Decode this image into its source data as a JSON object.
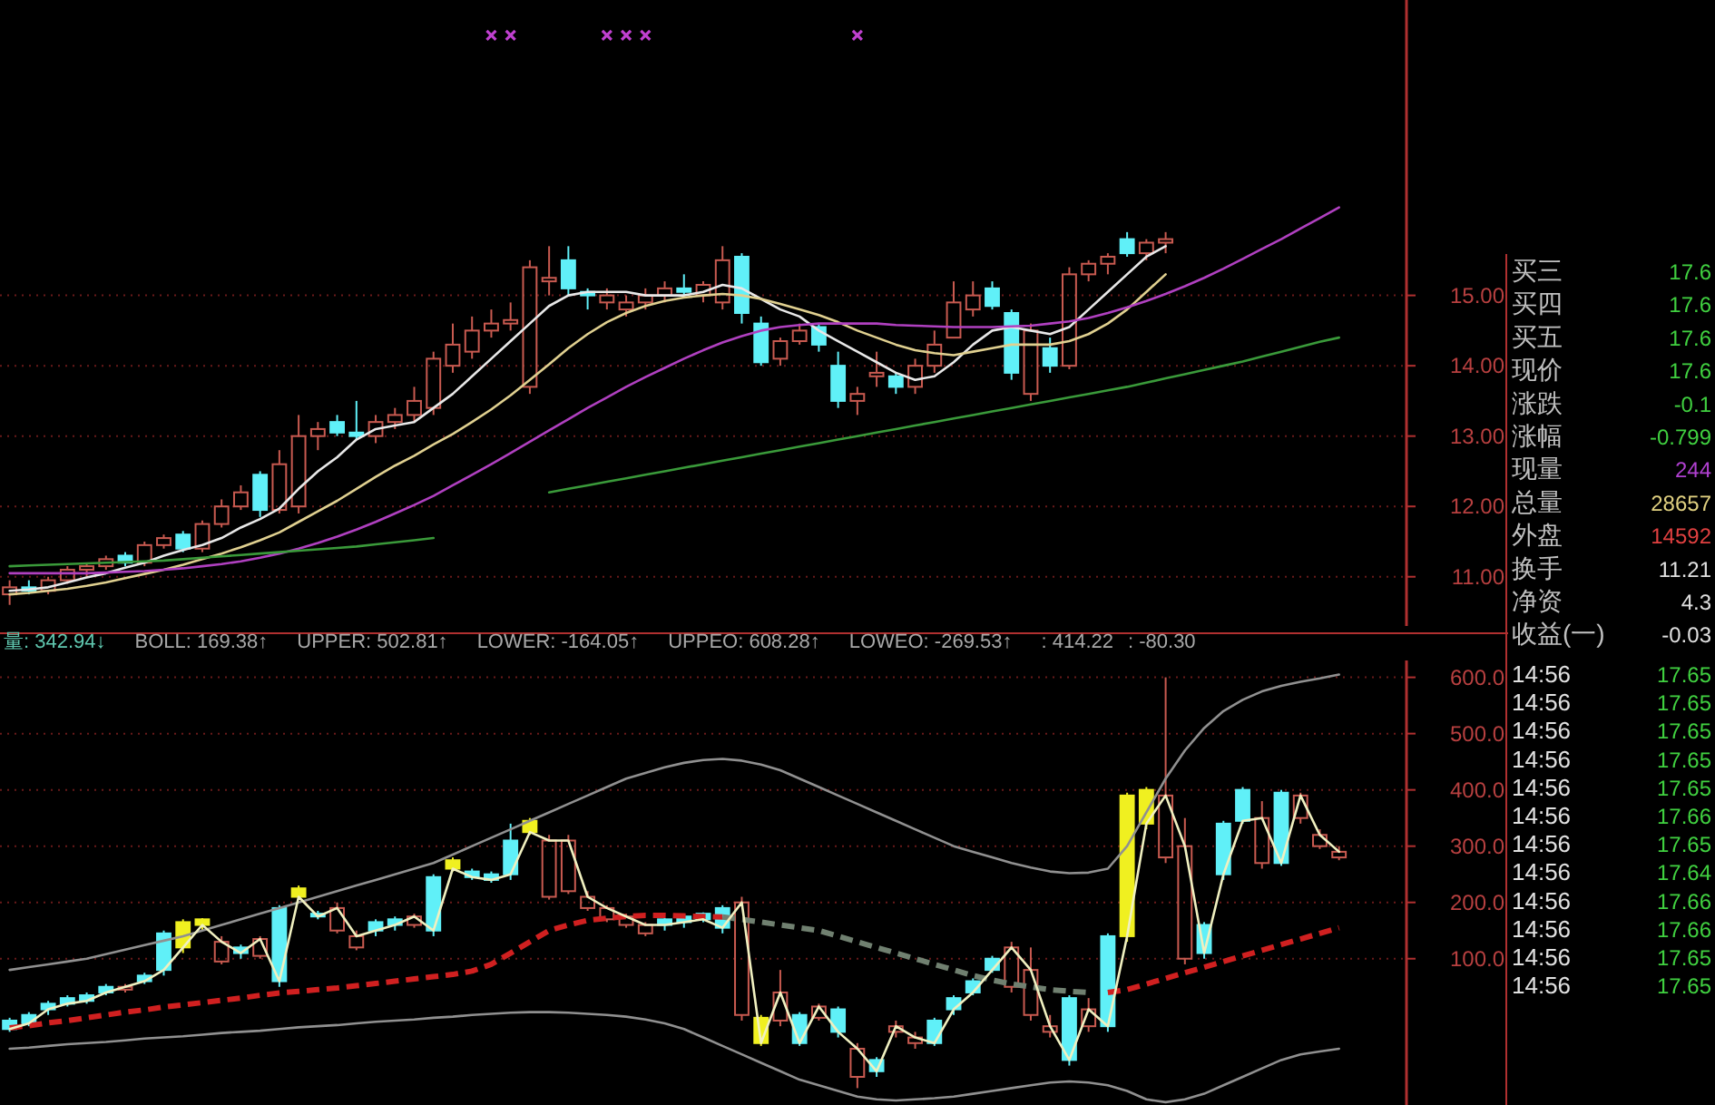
{
  "chart_data": [
    {
      "type": "candlestick",
      "categories": [
        null,
        null,
        null,
        null,
        null,
        null,
        null,
        null,
        null,
        null,
        null,
        null,
        null,
        null,
        null,
        null,
        null,
        null,
        null,
        null,
        null,
        null,
        null,
        null,
        null,
        null,
        null,
        null,
        null,
        null,
        null,
        null,
        null,
        null,
        null,
        null,
        null,
        null,
        null,
        null,
        null,
        null,
        null,
        null,
        null,
        null,
        null,
        null,
        null,
        null,
        null,
        null,
        null,
        null,
        null,
        null,
        null,
        null,
        null,
        null,
        null,
        null,
        null,
        null,
        null,
        null,
        null,
        null,
        null,
        null,
        null,
        null,
        null
      ],
      "ohlc": [
        [
          10.75,
          10.95,
          10.6,
          10.85
        ],
        [
          10.85,
          10.95,
          10.75,
          10.8
        ],
        [
          10.8,
          11.0,
          10.75,
          10.95
        ],
        [
          10.95,
          11.15,
          10.9,
          11.1
        ],
        [
          11.1,
          11.2,
          11.0,
          11.15
        ],
        [
          11.15,
          11.3,
          11.1,
          11.25
        ],
        [
          11.3,
          11.35,
          11.15,
          11.2
        ],
        [
          11.2,
          11.5,
          11.15,
          11.45
        ],
        [
          11.45,
          11.6,
          11.4,
          11.55
        ],
        [
          11.6,
          11.65,
          11.35,
          11.4
        ],
        [
          11.4,
          11.8,
          11.35,
          11.75
        ],
        [
          11.75,
          12.1,
          11.7,
          12.0
        ],
        [
          12.0,
          12.3,
          11.95,
          12.2
        ],
        [
          12.45,
          12.5,
          11.85,
          11.95
        ],
        [
          11.95,
          12.8,
          11.9,
          12.6
        ],
        [
          12.0,
          13.3,
          11.9,
          13.0
        ],
        [
          13.0,
          13.2,
          12.8,
          13.1
        ],
        [
          13.2,
          13.3,
          13.0,
          13.05
        ],
        [
          13.05,
          13.5,
          12.95,
          13.0
        ],
        [
          13.0,
          13.3,
          12.9,
          13.2
        ],
        [
          13.2,
          13.4,
          13.1,
          13.3
        ],
        [
          13.3,
          13.7,
          13.2,
          13.5
        ],
        [
          13.4,
          14.2,
          13.3,
          14.1
        ],
        [
          14.0,
          14.6,
          13.9,
          14.3
        ],
        [
          14.2,
          14.7,
          14.1,
          14.5
        ],
        [
          14.5,
          14.8,
          14.4,
          14.6
        ],
        [
          14.6,
          14.9,
          14.5,
          14.65
        ],
        [
          13.7,
          15.5,
          13.6,
          15.4
        ],
        [
          15.2,
          15.7,
          15.0,
          15.25
        ],
        [
          15.5,
          15.7,
          15.0,
          15.1
        ],
        [
          15.05,
          15.1,
          14.8,
          15.0
        ],
        [
          14.9,
          15.1,
          14.8,
          15.0
        ],
        [
          14.8,
          15.0,
          14.7,
          14.9
        ],
        [
          14.9,
          15.1,
          14.8,
          15.0
        ],
        [
          15.0,
          15.2,
          14.9,
          15.1
        ],
        [
          15.1,
          15.3,
          15.0,
          15.05
        ],
        [
          15.0,
          15.2,
          14.9,
          15.15
        ],
        [
          14.9,
          15.7,
          14.8,
          15.5
        ],
        [
          15.55,
          15.6,
          14.6,
          14.75
        ],
        [
          14.6,
          14.7,
          14.0,
          14.05
        ],
        [
          14.1,
          14.4,
          14.0,
          14.35
        ],
        [
          14.35,
          14.6,
          14.3,
          14.5
        ],
        [
          14.55,
          14.6,
          14.2,
          14.3
        ],
        [
          14.0,
          14.2,
          13.4,
          13.5
        ],
        [
          13.5,
          13.7,
          13.3,
          13.6
        ],
        [
          13.85,
          14.2,
          13.7,
          13.9
        ],
        [
          13.85,
          13.9,
          13.6,
          13.7
        ],
        [
          13.7,
          14.1,
          13.6,
          14.0
        ],
        [
          14.0,
          14.5,
          13.9,
          14.3
        ],
        [
          14.4,
          15.2,
          14.4,
          14.9
        ],
        [
          14.8,
          15.2,
          14.7,
          15.0
        ],
        [
          15.1,
          15.2,
          14.8,
          14.85
        ],
        [
          14.75,
          14.8,
          13.8,
          13.9
        ],
        [
          13.6,
          14.6,
          13.5,
          14.5
        ],
        [
          14.25,
          14.4,
          13.9,
          14.0
        ],
        [
          14.0,
          15.4,
          13.95,
          15.3
        ],
        [
          15.3,
          15.5,
          15.2,
          15.45
        ],
        [
          15.45,
          15.6,
          15.3,
          15.55
        ],
        [
          15.8,
          15.9,
          15.55,
          15.6
        ],
        [
          15.6,
          15.8,
          15.5,
          15.75
        ],
        [
          15.75,
          15.9,
          15.6,
          15.8
        ],
        null,
        null,
        null,
        null,
        null,
        null,
        null,
        null,
        null,
        null,
        null,
        null
      ],
      "colors": [
        "#c85a50",
        "#60f0f8",
        "#c85a50",
        "#c85a50",
        "#c85a50",
        "#c85a50",
        "#60f0f8",
        "#c85a50",
        "#c85a50",
        "#60f0f8",
        "#c85a50",
        "#c85a50",
        "#c85a50",
        "#60f0f8",
        "#c85a50",
        "#c85a50",
        "#c85a50",
        "#60f0f8",
        "#60f0f8",
        "#c85a50",
        "#c85a50",
        "#c85a50",
        "#c85a50",
        "#c85a50",
        "#c85a50",
        "#c85a50",
        "#c85a50",
        "#c85a50",
        "#c85a50",
        "#60f0f8",
        "#60f0f8",
        "#c85a50",
        "#c85a50",
        "#c85a50",
        "#c85a50",
        "#60f0f8",
        "#c85a50",
        "#c85a50",
        "#60f0f8",
        "#60f0f8",
        "#c85a50",
        "#c85a50",
        "#60f0f8",
        "#60f0f8",
        "#c85a50",
        "#c85a50",
        "#60f0f8",
        "#c85a50",
        "#c85a50",
        "#c85a50",
        "#c85a50",
        "#60f0f8",
        "#60f0f8",
        "#c85a50",
        "#60f0f8",
        "#c85a50",
        "#c85a50",
        "#c85a50",
        "#60f0f8",
        "#c85a50",
        "#c85a50",
        null,
        null,
        null,
        null,
        null,
        null,
        null,
        null,
        null,
        null,
        null,
        null
      ],
      "series": [
        {
          "type": "line",
          "color": "#e8e8e8",
          "values": [
            10.8,
            10.82,
            10.85,
            10.92,
            10.99,
            11.05,
            11.13,
            11.2,
            11.3,
            11.38,
            11.45,
            11.55,
            11.7,
            11.82,
            11.97,
            12.25,
            12.5,
            12.7,
            12.95,
            13.1,
            13.15,
            13.2,
            13.4,
            13.6,
            13.85,
            14.1,
            14.35,
            14.6,
            14.85,
            15.0,
            15.05,
            15.05,
            15.05,
            15.0,
            15.0,
            15.0,
            15.05,
            15.15,
            15.1,
            14.95,
            14.8,
            14.7,
            14.5,
            14.35,
            14.2,
            14.05,
            13.9,
            13.8,
            13.85,
            14.05,
            14.3,
            14.5,
            14.55,
            14.5,
            14.45,
            14.55,
            14.8,
            15.05,
            15.3,
            15.55,
            15.7,
            null,
            null,
            null,
            null,
            null,
            null,
            null,
            null,
            null,
            null,
            null,
            null
          ]
        },
        {
          "type": "line",
          "color": "#e0d090",
          "values": [
            10.75,
            10.77,
            10.8,
            10.83,
            10.87,
            10.92,
            10.98,
            11.04,
            11.1,
            11.17,
            11.25,
            11.33,
            11.42,
            11.52,
            11.63,
            11.78,
            11.93,
            12.08,
            12.25,
            12.42,
            12.58,
            12.72,
            12.88,
            13.03,
            13.2,
            13.38,
            13.58,
            13.8,
            14.02,
            14.25,
            14.45,
            14.62,
            14.75,
            14.85,
            14.92,
            14.97,
            15.0,
            15.02,
            15.0,
            14.95,
            14.88,
            14.8,
            14.72,
            14.62,
            14.5,
            14.4,
            14.3,
            14.22,
            14.18,
            14.15,
            14.2,
            14.25,
            14.3,
            14.3,
            14.3,
            14.35,
            14.45,
            14.6,
            14.8,
            15.05,
            15.3,
            null,
            null,
            null,
            null,
            null,
            null,
            null,
            null,
            null,
            null,
            null,
            null
          ]
        },
        {
          "type": "line",
          "color": "#b040c0",
          "values": [
            11.05,
            11.05,
            11.05,
            11.05,
            11.05,
            11.06,
            11.07,
            11.08,
            11.1,
            11.12,
            11.15,
            11.18,
            11.22,
            11.27,
            11.33,
            11.4,
            11.48,
            11.57,
            11.67,
            11.78,
            11.9,
            12.02,
            12.15,
            12.3,
            12.45,
            12.6,
            12.76,
            12.92,
            13.08,
            13.24,
            13.4,
            13.55,
            13.7,
            13.84,
            13.97,
            14.1,
            14.22,
            14.33,
            14.42,
            14.5,
            14.55,
            14.58,
            14.6,
            14.6,
            14.6,
            14.6,
            14.58,
            14.57,
            14.56,
            14.55,
            14.55,
            14.55,
            14.56,
            14.57,
            14.6,
            14.63,
            14.68,
            14.75,
            14.83,
            14.92,
            15.02,
            15.13,
            15.25,
            15.38,
            15.52,
            15.66,
            15.8,
            15.95,
            16.1,
            16.25,
            null,
            null,
            null
          ]
        },
        {
          "type": "line",
          "color": "#3a9a3a",
          "values": [
            11.15,
            11.16,
            11.17,
            11.18,
            11.19,
            11.2,
            11.21,
            11.22,
            11.23,
            11.25,
            11.27,
            11.29,
            11.31,
            11.33,
            11.35,
            11.37,
            11.39,
            11.41,
            11.43,
            11.46,
            11.49,
            11.52,
            11.55,
            null,
            null,
            null,
            null,
            null,
            12.2,
            12.25,
            12.3,
            12.35,
            12.4,
            12.45,
            12.5,
            12.55,
            12.6,
            12.65,
            12.7,
            12.75,
            12.8,
            12.85,
            12.9,
            12.95,
            13.0,
            13.05,
            13.1,
            13.15,
            13.2,
            13.25,
            13.3,
            13.35,
            13.4,
            13.45,
            13.5,
            13.55,
            13.6,
            13.65,
            13.7,
            13.76,
            13.82,
            13.88,
            13.94,
            14.0,
            14.06,
            14.13,
            14.2,
            14.27,
            14.34,
            14.4,
            null,
            null,
            null
          ]
        },
        {
          "type": "scatter",
          "marker": "cross",
          "color": "#c040d0",
          "values": [
            null,
            null,
            null,
            null,
            null,
            null,
            null,
            null,
            null,
            null,
            null,
            null,
            null,
            null,
            null,
            null,
            null,
            null,
            null,
            null,
            null,
            null,
            null,
            null,
            null,
            18.7,
            18.7,
            null,
            null,
            null,
            null,
            18.7,
            18.7,
            18.7,
            null,
            null,
            null,
            null,
            null,
            null,
            null,
            null,
            null,
            null,
            18.7,
            null,
            null,
            null,
            null,
            null,
            null,
            null,
            null,
            null,
            null,
            null,
            null,
            null,
            null,
            null,
            null,
            null,
            null,
            null,
            null,
            null,
            null,
            null,
            null,
            null,
            null,
            null,
            null
          ]
        }
      ],
      "ylim": [
        10.3,
        19.2
      ],
      "yticks": [
        {
          "value": 11,
          "label": "11.00"
        },
        {
          "value": 12,
          "label": "12.00"
        },
        {
          "value": 13,
          "label": "13.00"
        },
        {
          "value": 14,
          "label": "14.00"
        },
        {
          "value": 15,
          "label": "15.00"
        }
      ],
      "grid": "y"
    },
    {
      "type": "candlestick",
      "categories": [
        null,
        null,
        null,
        null,
        null,
        null,
        null,
        null,
        null,
        null,
        null,
        null,
        null,
        null,
        null,
        null,
        null,
        null,
        null,
        null,
        null,
        null,
        null,
        null,
        null,
        null,
        null,
        null,
        null,
        null,
        null,
        null,
        null,
        null,
        null,
        null,
        null,
        null,
        null,
        null,
        null,
        null,
        null,
        null,
        null,
        null,
        null,
        null,
        null,
        null,
        null,
        null,
        null,
        null,
        null,
        null,
        null,
        null,
        null,
        null,
        null,
        null,
        null,
        null,
        null,
        null,
        null,
        null,
        null,
        null,
        null,
        null,
        null
      ],
      "ohlc": [
        [
          -10,
          -5,
          -30,
          -25
        ],
        [
          0,
          5,
          -20,
          -15
        ],
        [
          20,
          25,
          0,
          10
        ],
        [
          30,
          35,
          15,
          20
        ],
        [
          35,
          40,
          20,
          25
        ],
        [
          50,
          55,
          35,
          40
        ],
        [
          45,
          55,
          40,
          50
        ],
        [
          70,
          75,
          55,
          60
        ],
        [
          145,
          150,
          70,
          80
        ],
        [
          165,
          170,
          110,
          120
        ],
        [
          170,
          172,
          150,
          160
        ],
        [
          95,
          140,
          90,
          130
        ],
        [
          120,
          125,
          100,
          110
        ],
        [
          105,
          140,
          100,
          135
        ],
        [
          190,
          195,
          50,
          60
        ],
        [
          225,
          230,
          205,
          210
        ],
        [
          180,
          185,
          170,
          175
        ],
        [
          150,
          200,
          145,
          190
        ],
        [
          120,
          150,
          115,
          140
        ],
        [
          165,
          170,
          140,
          150
        ],
        [
          170,
          175,
          150,
          160
        ],
        [
          160,
          180,
          155,
          175
        ],
        [
          245,
          250,
          140,
          150
        ],
        [
          275,
          280,
          255,
          260
        ],
        [
          255,
          260,
          240,
          245
        ],
        [
          250,
          255,
          235,
          240
        ],
        [
          310,
          340,
          240,
          250
        ],
        [
          345,
          350,
          320,
          325
        ],
        [
          210,
          320,
          205,
          310
        ],
        [
          220,
          320,
          215,
          310
        ],
        [
          190,
          220,
          185,
          210
        ],
        [
          170,
          195,
          165,
          190
        ],
        [
          160,
          180,
          155,
          175
        ],
        [
          145,
          165,
          140,
          160
        ],
        [
          170,
          172,
          150,
          160
        ],
        [
          175,
          178,
          155,
          165
        ],
        [
          180,
          182,
          165,
          170
        ],
        [
          190,
          195,
          145,
          155
        ],
        [
          0,
          210,
          -10,
          200
        ],
        [
          -5,
          0,
          -55,
          -50
        ],
        [
          -10,
          80,
          -20,
          40
        ],
        [
          0,
          5,
          -55,
          -50
        ],
        [
          -5,
          20,
          -10,
          15
        ],
        [
          10,
          15,
          -40,
          -30
        ],
        [
          -110,
          -50,
          -130,
          -60
        ],
        [
          -80,
          -75,
          -110,
          -100
        ],
        [
          -30,
          -10,
          -40,
          -20
        ],
        [
          -50,
          -30,
          -60,
          -40
        ],
        [
          -10,
          -5,
          -55,
          -50
        ],
        [
          30,
          35,
          0,
          10
        ],
        [
          60,
          65,
          35,
          40
        ],
        [
          100,
          105,
          75,
          80
        ],
        [
          50,
          130,
          40,
          120
        ],
        [
          0,
          120,
          -10,
          80
        ],
        [
          -30,
          0,
          -40,
          -20
        ],
        [
          30,
          35,
          -90,
          -80
        ],
        [
          -20,
          30,
          -30,
          10
        ],
        [
          140,
          145,
          -30,
          -20
        ],
        [
          390,
          395,
          130,
          140
        ],
        [
          400,
          405,
          330,
          340
        ],
        [
          280,
          600,
          270,
          390
        ],
        [
          100,
          350,
          90,
          300
        ],
        [
          160,
          165,
          100,
          110
        ],
        [
          340,
          345,
          240,
          250
        ],
        [
          400,
          405,
          340,
          345
        ],
        [
          270,
          380,
          260,
          350
        ],
        [
          395,
          400,
          265,
          270
        ],
        [
          350,
          395,
          340,
          390
        ],
        [
          300,
          330,
          295,
          320
        ],
        [
          280,
          300,
          275,
          290
        ],
        null,
        null,
        null
      ],
      "colors": [
        "#60f0f8",
        "#60f0f8",
        "#60f0f8",
        "#60f0f8",
        "#60f0f8",
        "#60f0f8",
        "#c85a50",
        "#60f0f8",
        "#60f0f8",
        "#f0f020",
        "#f0f020",
        "#c85a50",
        "#60f0f8",
        "#c85a50",
        "#60f0f8",
        "#f0f020",
        "#60f0f8",
        "#c85a50",
        "#c85a50",
        "#60f0f8",
        "#60f0f8",
        "#c85a50",
        "#60f0f8",
        "#f0f020",
        "#60f0f8",
        "#60f0f8",
        "#60f0f8",
        "#f0f020",
        "#c85a50",
        "#c85a50",
        "#c85a50",
        "#c85a50",
        "#c85a50",
        "#c85a50",
        "#60f0f8",
        "#60f0f8",
        "#60f0f8",
        "#60f0f8",
        "#c85a50",
        "#f0f020",
        "#c85a50",
        "#60f0f8",
        "#c85a50",
        "#60f0f8",
        "#c85a50",
        "#60f0f8",
        "#c85a50",
        "#c85a50",
        "#60f0f8",
        "#60f0f8",
        "#60f0f8",
        "#60f0f8",
        "#c85a50",
        "#c85a50",
        "#c85a50",
        "#60f0f8",
        "#c85a50",
        "#60f0f8",
        "#f0f020",
        "#f0f020",
        "#c85a50",
        "#c85a50",
        "#60f0f8",
        "#60f0f8",
        "#60f0f8",
        "#c85a50",
        "#60f0f8",
        "#c85a50",
        "#c85a50",
        "#c85a50",
        null,
        null,
        null
      ],
      "series": [
        {
          "type": "line",
          "color": "#909090",
          "values": [
            80,
            85,
            90,
            95,
            100,
            108,
            116,
            124,
            132,
            140,
            150,
            160,
            170,
            180,
            190,
            200,
            210,
            220,
            230,
            240,
            250,
            260,
            270,
            285,
            300,
            315,
            330,
            345,
            360,
            375,
            390,
            405,
            420,
            430,
            440,
            448,
            453,
            455,
            452,
            445,
            435,
            420,
            405,
            390,
            375,
            360,
            345,
            330,
            315,
            300,
            290,
            280,
            270,
            262,
            255,
            252,
            253,
            260,
            300,
            360,
            420,
            470,
            510,
            540,
            560,
            575,
            585,
            592,
            598,
            605,
            null,
            null,
            null
          ]
        },
        {
          "type": "line",
          "color": "#909090",
          "values": [
            -60,
            -58,
            -55,
            -52,
            -50,
            -48,
            -45,
            -42,
            -40,
            -38,
            -35,
            -32,
            -30,
            -28,
            -25,
            -22,
            -20,
            -18,
            -15,
            -12,
            -10,
            -8,
            -5,
            -3,
            0,
            2,
            4,
            5,
            5,
            4,
            2,
            0,
            -3,
            -8,
            -15,
            -25,
            -40,
            -55,
            -70,
            -85,
            -100,
            -115,
            -125,
            -135,
            -145,
            -150,
            -152,
            -150,
            -148,
            -145,
            -140,
            -135,
            -130,
            -125,
            -120,
            -118,
            -120,
            -125,
            -135,
            -150,
            -155,
            -150,
            -140,
            -125,
            -110,
            -95,
            -80,
            -70,
            -65,
            -60,
            null,
            null,
            null
          ]
        },
        {
          "type": "line",
          "line_style": "dashed",
          "color": "#d02020",
          "values": [
            -23,
            -19,
            -14,
            -10,
            -5,
            0,
            5,
            9,
            14,
            18,
            22,
            26,
            30,
            35,
            39,
            42,
            45,
            48,
            52,
            56,
            60,
            64,
            68,
            72,
            78,
            90,
            110,
            130,
            150,
            160,
            168,
            172,
            175,
            177,
            177,
            176,
            175,
            174,
            null,
            null,
            null,
            null,
            null,
            null,
            null,
            null,
            null,
            null,
            null,
            null,
            null,
            null,
            null,
            null,
            null,
            null,
            null,
            40,
            45,
            55,
            65,
            75,
            85,
            95,
            105,
            115,
            125,
            135,
            145,
            155,
            null,
            null,
            null
          ]
        },
        {
          "type": "line",
          "line_style": "dashed",
          "color": "#708070",
          "values": [
            null,
            null,
            null,
            null,
            null,
            null,
            null,
            null,
            null,
            null,
            null,
            null,
            null,
            null,
            null,
            null,
            null,
            null,
            null,
            null,
            null,
            null,
            null,
            null,
            null,
            null,
            null,
            null,
            null,
            null,
            null,
            null,
            null,
            null,
            null,
            null,
            null,
            174,
            170,
            165,
            160,
            155,
            150,
            140,
            130,
            120,
            110,
            100,
            90,
            80,
            70,
            62,
            55,
            50,
            45,
            42,
            40,
            null,
            null,
            null,
            null,
            null,
            null,
            null,
            null,
            null,
            null,
            null,
            null,
            null,
            null,
            null,
            null
          ]
        },
        {
          "type": "line",
          "color": "#f0f0c0",
          "values": [
            -25,
            -15,
            10,
            20,
            25,
            40,
            50,
            60,
            80,
            120,
            160,
            130,
            110,
            135,
            60,
            210,
            175,
            190,
            140,
            150,
            160,
            175,
            150,
            260,
            245,
            240,
            250,
            325,
            310,
            310,
            210,
            190,
            175,
            160,
            160,
            165,
            170,
            155,
            200,
            -50,
            40,
            -50,
            15,
            -30,
            -60,
            -100,
            -20,
            -40,
            -50,
            10,
            40,
            80,
            120,
            80,
            -20,
            -80,
            10,
            -20,
            140,
            340,
            390,
            300,
            110,
            250,
            345,
            350,
            270,
            390,
            320,
            290,
            null,
            null,
            null
          ]
        }
      ],
      "ylim": [
        -160,
        630
      ],
      "yticks": [
        {
          "value": 100,
          "label": "100.0"
        },
        {
          "value": 200,
          "label": "200.0"
        },
        {
          "value": 300,
          "label": "300.0"
        },
        {
          "value": 400,
          "label": "400.0"
        },
        {
          "value": 500,
          "label": "500.0"
        },
        {
          "value": 600,
          "label": "600.0"
        }
      ],
      "grid": "y",
      "annotations": [
        "量: 342.94↓",
        "BOLL: 169.38↑",
        "UPPER: 502.81↑",
        "LOWER: -164.05↑",
        "UPPEO: 608.28↑",
        "LOWEO: -269.53↑",
        ": 414.22",
        ": -80.30"
      ]
    },
    {
      "type": "other",
      "annotations": [
        "买三",
        "17.6",
        "买四",
        "17.6",
        "买五",
        "17.6",
        "现价",
        "17.6",
        "涨跌",
        "-0.1",
        "涨幅",
        "-0.799",
        "现量",
        "244",
        "总量",
        "28657",
        "外盘",
        "14592",
        "换手",
        "11.21",
        "净资",
        "4.3",
        "收益(一)",
        "-0.03",
        "14:56",
        "17.65",
        "14:56",
        "17.65",
        "14:56",
        "17.65",
        "14:56",
        "17.65",
        "14:56",
        "17.65",
        "14:56",
        "17.66",
        "14:56",
        "17.65",
        "14:56",
        "17.64",
        "14:56",
        "17.66",
        "14:56",
        "17.66",
        "14:56",
        "17.65",
        "14:56",
        "17.65"
      ],
      "colors": [
        "#c0c0c0",
        "#40d040",
        "#c0c0c0",
        "#40d040",
        "#c0c0c0",
        "#40d040",
        "#c0c0c0",
        "#40d040",
        "#c0c0c0",
        "#40d040",
        "#c0c0c0",
        "#40d040",
        "#c0c0c0",
        "#b040d0",
        "#c0c0c0",
        "#e0d080",
        "#c0c0c0",
        "#e04040",
        "#c0c0c0",
        "#e0e0e0",
        "#c0c0c0",
        "#e0e0e0",
        "#c0c0c0",
        "#e0e0e0",
        "#e0e0e0",
        "#40d040",
        "#e0e0e0",
        "#40d040",
        "#e0e0e0",
        "#40d040",
        "#e0e0e0",
        "#40d040",
        "#e0e0e0",
        "#40d040",
        "#e0e0e0",
        "#40d040",
        "#e0e0e0",
        "#40d040",
        "#e0e0e0",
        "#40d040",
        "#e0e0e0",
        "#40d040",
        "#e0e0e0",
        "#40d040",
        "#e0e0e0",
        "#40d040",
        "#e0e0e0",
        "#40d040"
      ]
    }
  ]
}
